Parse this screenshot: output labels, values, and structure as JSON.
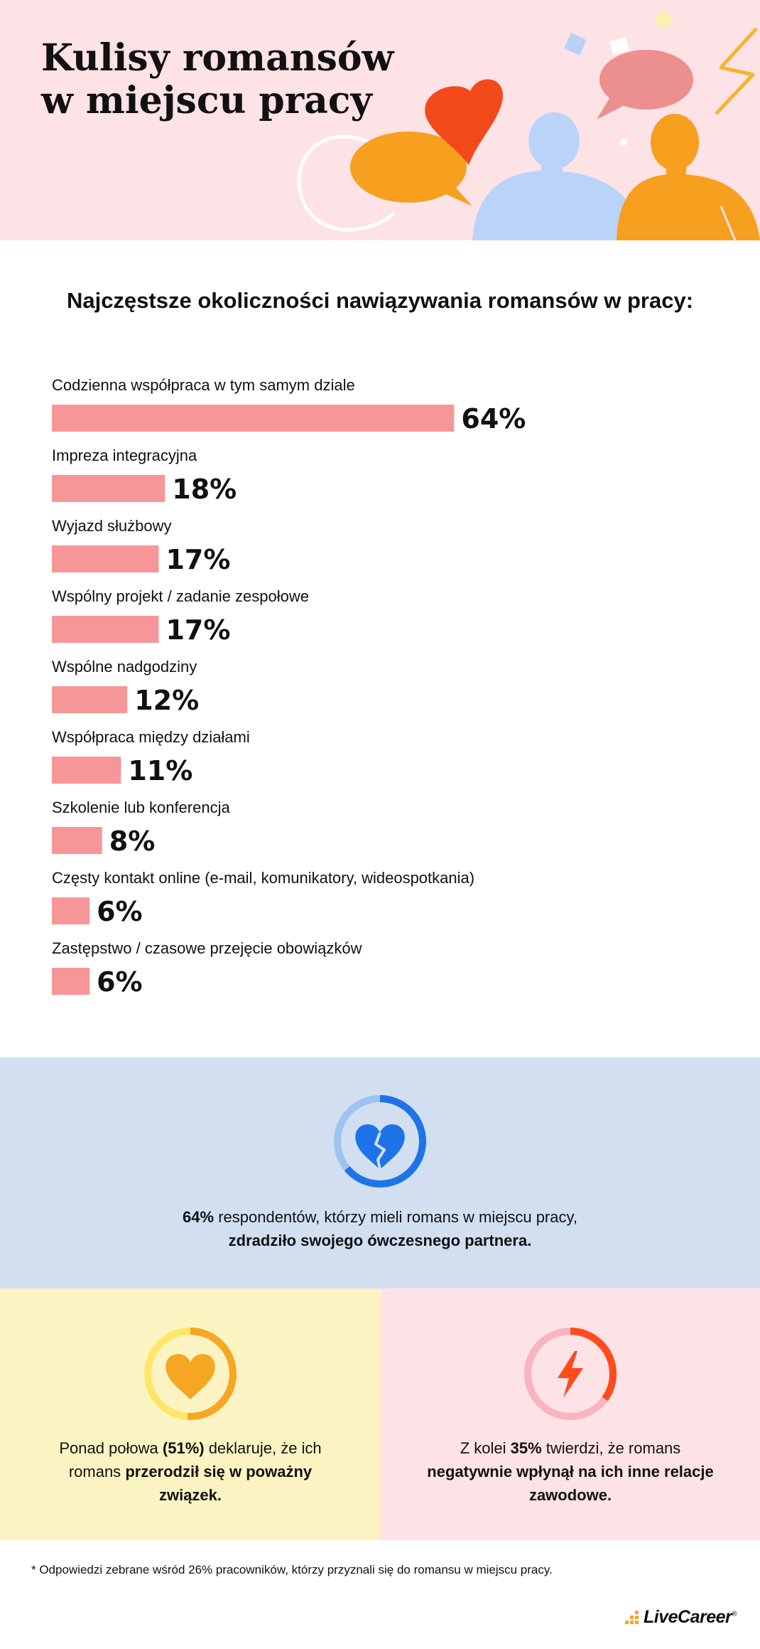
{
  "header": {
    "title_line1": "Kulisy romansów",
    "title_line2": "w miejscu pracy"
  },
  "chart_data": {
    "type": "bar",
    "orientation": "horizontal",
    "title": "Najczęstsze okoliczności nawiązywania romansów w pracy:",
    "value_suffix": "%",
    "bar_color": "#f79698",
    "categories": [
      "Codzienna współpraca w tym samym dziale",
      "Impreza integracyjna",
      "Wyjazd służbowy",
      "Wspólny projekt / zadanie zespołowe",
      "Wspólne nadgodziny",
      "Współpraca między działami",
      "Szkolenie lub konferencja",
      "Częsty kontakt online (e-mail, komunikatory, wideospotkania)",
      "Zastępstwo / czasowe przejęcie obowiązków"
    ],
    "values": [
      64,
      18,
      17,
      17,
      12,
      11,
      8,
      6,
      6
    ],
    "labels": [
      "64%",
      "18%",
      "17%",
      "17%",
      "12%",
      "11%",
      "8%",
      "6%",
      "6%"
    ]
  },
  "stats": {
    "blue": {
      "value": "64%",
      "text_after_value": " respondentów, którzy mieli romans w miejscu pracy,",
      "bold_line": "zdradziło swojego ówczesnego partnera.",
      "icon": "broken-heart-icon",
      "ring_color": "#1e73e8",
      "ring_track_color": "#9fc3ee"
    },
    "yellow": {
      "text_before": "Ponad połowa ",
      "value": "(51%)",
      "text_after_value": " deklaruje, że ich",
      "line2_plain": "romans ",
      "line2_bold": "przerodził się w poważny",
      "line3_bold": "związek.",
      "icon": "heart-icon",
      "ring_color": "#f5a623",
      "ring_track_color": "#fde56a"
    },
    "pink": {
      "text_before": "Z kolei ",
      "value": "35%",
      "text_after_value": " twierdzi, że romans",
      "line2_bold": "negatywnie wpłynął na ich inne relacje",
      "line3_bold": "zawodowe.",
      "icon": "lightning-icon",
      "ring_color": "#ff4a1c",
      "ring_track_color": "#f9b4c0"
    }
  },
  "footnote": "* Odpowiedzi zebrane wśród 26% pracowników, którzy przyznali się do romansu w miejscu pracy.",
  "brand": {
    "name": "LiveCareer",
    "mark": "®"
  }
}
